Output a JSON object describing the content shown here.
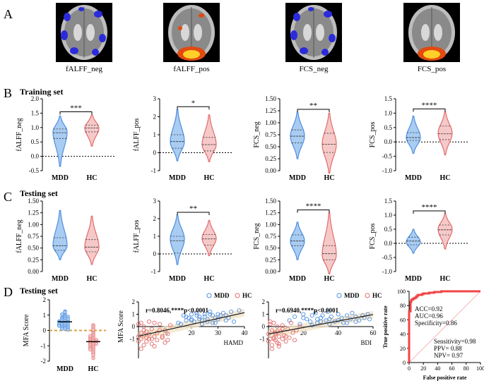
{
  "panel_letters": {
    "A": "A",
    "B": "B",
    "C": "C",
    "D": "D"
  },
  "rows": {
    "training": "Training set",
    "testing_c": "Testing set",
    "testing_d": "Testing set"
  },
  "groups": [
    "MDD",
    "HC"
  ],
  "colors": {
    "mdd_fill": "#a9ccf2",
    "mdd_line": "#4f8fe0",
    "hc_fill": "#f6c9c9",
    "hc_line": "#e36a6a",
    "roc": "#f04545",
    "fit": "#222222",
    "ci": "#f3e3c8",
    "dash": "#d9a241"
  },
  "brains": [
    {
      "label": "fALFF_neg",
      "type": "neg"
    },
    {
      "label": "fALFF_pos",
      "type": "pos"
    },
    {
      "label": "FCS_neg",
      "type": "neg"
    },
    {
      "label": "FCS_pos",
      "type": "pos"
    }
  ],
  "chart_data": [
    {
      "type": "violin",
      "panel": "B",
      "ylabel": "fALFF_neg",
      "ylim": [
        -0.5,
        2.0
      ],
      "yticks": [
        -0.5,
        0.0,
        0.5,
        1.0,
        1.5,
        2.0
      ],
      "tick_labels": [
        "-0.5",
        "0.0",
        "0.5",
        "1.0",
        "1.5",
        "2.0"
      ],
      "significance": "***",
      "series": [
        {
          "name": "MDD",
          "min": -0.35,
          "q1": 0.62,
          "median": 0.82,
          "q3": 0.95,
          "max": 1.4,
          "mode": 0.85
        },
        {
          "name": "HC",
          "min": 0.35,
          "q1": 0.85,
          "median": 0.98,
          "q3": 1.08,
          "max": 1.45,
          "mode": 0.98
        }
      ]
    },
    {
      "type": "violin",
      "panel": "B",
      "ylabel": "fALFF_pos",
      "ylim": [
        -1,
        3
      ],
      "yticks": [
        -1,
        0,
        1,
        2,
        3
      ],
      "tick_labels": [
        "-1",
        "0",
        "1",
        "2",
        "3"
      ],
      "significance": "*",
      "series": [
        {
          "name": "MDD",
          "min": -0.45,
          "q1": 0.25,
          "median": 0.62,
          "q3": 1.0,
          "max": 2.4,
          "mode": 0.6
        },
        {
          "name": "HC",
          "min": -0.5,
          "q1": 0.1,
          "median": 0.45,
          "q3": 0.85,
          "max": 2.1,
          "mode": 0.45
        }
      ]
    },
    {
      "type": "violin",
      "panel": "B",
      "ylabel": "FCS_neg",
      "ylim": [
        0.0,
        1.5
      ],
      "yticks": [
        0.0,
        0.25,
        0.5,
        0.75,
        1.0,
        1.25,
        1.5
      ],
      "tick_labels": [
        "0.00",
        "0.25",
        "0.50",
        "0.75",
        "1.00",
        "1.25",
        "1.50"
      ],
      "significance": "**",
      "series": [
        {
          "name": "MDD",
          "min": 0.25,
          "q1": 0.58,
          "median": 0.72,
          "q3": 0.85,
          "max": 1.22,
          "mode": 0.72
        },
        {
          "name": "HC",
          "min": -0.05,
          "q1": 0.38,
          "median": 0.55,
          "q3": 0.78,
          "max": 1.2,
          "mode": 0.55
        }
      ]
    },
    {
      "type": "violin",
      "panel": "B",
      "ylabel": "FCS_pos",
      "ylim": [
        -1.0,
        1.5
      ],
      "yticks": [
        -1.0,
        -0.5,
        0.0,
        0.5,
        1.0,
        1.5
      ],
      "tick_labels": [
        "-1.0",
        "-0.5",
        "0.0",
        "0.5",
        "1.0",
        "1.5"
      ],
      "significance": "****",
      "series": [
        {
          "name": "MDD",
          "min": -0.4,
          "q1": 0.05,
          "median": 0.15,
          "q3": 0.32,
          "max": 0.9,
          "mode": 0.15
        },
        {
          "name": "HC",
          "min": -0.45,
          "q1": 0.08,
          "median": 0.28,
          "q3": 0.55,
          "max": 1.05,
          "mode": 0.3
        }
      ]
    },
    {
      "type": "violin",
      "panel": "C",
      "ylabel": "fALFF_neg",
      "ylim": [
        0.0,
        1.5
      ],
      "yticks": [
        0.0,
        0.25,
        0.5,
        0.75,
        1.0,
        1.25,
        1.5
      ],
      "tick_labels": [
        "0.00",
        "0.25",
        "0.50",
        "0.75",
        "1.00",
        "1.25",
        "1.50"
      ],
      "significance": "",
      "series": [
        {
          "name": "MDD",
          "min": 0.25,
          "q1": 0.45,
          "median": 0.55,
          "q3": 0.72,
          "max": 1.3,
          "mode": 0.55
        },
        {
          "name": "HC",
          "min": 0.15,
          "q1": 0.42,
          "median": 0.52,
          "q3": 0.68,
          "max": 1.18,
          "mode": 0.52
        }
      ]
    },
    {
      "type": "violin",
      "panel": "C",
      "ylabel": "fALFF_pos",
      "ylim": [
        -1,
        3
      ],
      "yticks": [
        -1,
        0,
        1,
        2,
        3
      ],
      "tick_labels": [
        "-1",
        "0",
        "1",
        "2",
        "3"
      ],
      "significance": "**",
      "series": [
        {
          "name": "MDD",
          "min": -0.6,
          "q1": 0.05,
          "median": 0.75,
          "q3": 1.0,
          "max": 2.2,
          "mode": 0.85
        },
        {
          "name": "HC",
          "min": -0.1,
          "q1": 0.5,
          "median": 0.85,
          "q3": 1.1,
          "max": 1.9,
          "mode": 0.88
        }
      ]
    },
    {
      "type": "violin",
      "panel": "C",
      "ylabel": "FCS_neg",
      "ylim": [
        0.0,
        1.5
      ],
      "yticks": [
        0.0,
        0.25,
        0.5,
        0.75,
        1.0,
        1.25,
        1.5
      ],
      "tick_labels": [
        "0.00",
        "0.25",
        "0.50",
        "0.75",
        "1.00",
        "1.25",
        "1.50"
      ],
      "significance": "****",
      "series": [
        {
          "name": "MDD",
          "min": 0.25,
          "q1": 0.55,
          "median": 0.65,
          "q3": 0.78,
          "max": 1.05,
          "mode": 0.65
        },
        {
          "name": "HC",
          "min": -0.05,
          "q1": 0.25,
          "median": 0.38,
          "q3": 0.55,
          "max": 1.25,
          "mode": 0.35
        }
      ]
    },
    {
      "type": "violin",
      "panel": "C",
      "ylabel": "FCS_pos",
      "ylim": [
        -1.0,
        1.5
      ],
      "yticks": [
        -1.0,
        -0.5,
        0.0,
        0.5,
        1.0,
        1.5
      ],
      "tick_labels": [
        "-1.0",
        "-0.5",
        "0.0",
        "0.5",
        "1.0",
        "1.5"
      ],
      "significance": "****",
      "series": [
        {
          "name": "MDD",
          "min": -0.35,
          "q1": -0.05,
          "median": 0.08,
          "q3": 0.22,
          "max": 0.5,
          "mode": 0.05
        },
        {
          "name": "HC",
          "min": -0.2,
          "q1": 0.3,
          "median": 0.48,
          "q3": 0.65,
          "max": 1.05,
          "mode": 0.5
        }
      ]
    },
    {
      "type": "scatter",
      "panel": "D",
      "name": "mfa-dot",
      "ylabel": "MFA Score",
      "ylim": [
        -2,
        2
      ],
      "yticks": [
        -2,
        -1,
        0,
        1,
        2
      ],
      "tick_labels": [
        "-2",
        "-1",
        "0",
        "1",
        "2"
      ],
      "categories": [
        "MDD",
        "HC"
      ],
      "threshold": 0.0,
      "series": [
        {
          "name": "MDD",
          "values": [
            1.25,
            1.1,
            1.05,
            0.95,
            0.9,
            0.85,
            0.8,
            0.78,
            0.72,
            0.7,
            0.65,
            0.6,
            0.58,
            0.55,
            0.5,
            0.48,
            0.45,
            0.42,
            0.4,
            0.38,
            0.35,
            0.3,
            0.28,
            0.25,
            0.2,
            0.18,
            0.15,
            0.12,
            0.1,
            0.05,
            0.3,
            0.6,
            0.9,
            1.2,
            0.75,
            0.52
          ]
        },
        {
          "name": "HC",
          "values": [
            0.35,
            0.25,
            0.15,
            -0.1,
            -0.2,
            -0.3,
            -0.4,
            -0.45,
            -0.5,
            -0.55,
            -0.6,
            -0.65,
            -0.7,
            -0.75,
            -0.8,
            -0.85,
            -0.9,
            -0.95,
            -1.0,
            -1.05,
            -1.1,
            -1.15,
            -1.2,
            -1.3,
            -1.4,
            -1.5,
            -1.6,
            -1.8,
            -0.35,
            -0.62,
            -0.72,
            -0.88,
            -1.25,
            0.05
          ]
        }
      ]
    },
    {
      "type": "scatter",
      "panel": "D",
      "name": "hamd",
      "xlabel": "HAMD",
      "ylabel": "MFA Score",
      "xlim": [
        0,
        40
      ],
      "ylim": [
        -2,
        2
      ],
      "xticks": [
        10,
        20,
        30,
        40
      ],
      "yticks": [
        -1,
        0,
        1,
        2
      ],
      "x_tick_labels": [
        "10",
        "20",
        "30",
        "40"
      ],
      "tick_labels": [
        "-1",
        "0",
        "1",
        "2"
      ],
      "stat": "r=0.8046,****p<0.0001",
      "fit": {
        "slope": 0.0477,
        "intercept": -0.78
      },
      "series": [
        {
          "name": "MDD",
          "x": [
            15,
            16,
            17,
            18,
            18,
            19,
            20,
            20,
            21,
            22,
            22,
            23,
            24,
            24,
            25,
            26,
            26,
            27,
            28,
            28,
            29,
            30,
            30,
            31,
            32,
            33,
            34,
            35,
            36,
            38,
            20,
            25,
            29,
            33,
            23,
            27
          ],
          "y": [
            0.3,
            0.2,
            0.9,
            0.5,
            0.8,
            0.7,
            1.0,
            0.6,
            0.4,
            0.9,
            1.1,
            0.8,
            0.2,
            0.5,
            1.0,
            0.4,
            0.6,
            1.2,
            0.9,
            0.3,
            0.7,
            1.0,
            0.6,
            0.9,
            1.1,
            0.5,
            0.7,
            1.2,
            0.4,
            1.3,
            0.5,
            0.8,
            0.3,
            0.9,
            0.6,
            1.0
          ]
        },
        {
          "name": "HC",
          "x": [
            0,
            0,
            1,
            1,
            1,
            2,
            2,
            2,
            3,
            3,
            4,
            4,
            5,
            5,
            6,
            6,
            7,
            7,
            8,
            9,
            10,
            10,
            11,
            12,
            1,
            3,
            5,
            0,
            2,
            4,
            6,
            8,
            9,
            11
          ],
          "y": [
            -1.2,
            -0.8,
            -1.0,
            -0.5,
            0.3,
            -1.5,
            -0.3,
            0.0,
            -0.9,
            -1.2,
            -0.6,
            0.4,
            -1.0,
            -0.2,
            -0.8,
            0.3,
            -1.1,
            -0.5,
            0.2,
            -0.9,
            -0.3,
            -1.3,
            -0.6,
            0.1,
            -1.8,
            -0.4,
            -1.4,
            0.2,
            -0.7,
            -1.0,
            -1.6,
            -0.3,
            -0.8,
            -1.1
          ]
        }
      ]
    },
    {
      "type": "scatter",
      "panel": "D",
      "name": "bdi",
      "xlabel": "BDI",
      "ylabel": "",
      "xlim": [
        0,
        60
      ],
      "ylim": [
        -2,
        2
      ],
      "xticks": [
        20,
        40,
        60
      ],
      "yticks": [
        -1,
        0,
        1,
        2
      ],
      "x_tick_labels": [
        "20",
        "40",
        "60"
      ],
      "tick_labels": [
        "-1",
        "0",
        "1",
        "2"
      ],
      "stat": "r=0.6940,****p<0.0001",
      "fit": {
        "slope": 0.0262,
        "intercept": -0.6
      },
      "series": [
        {
          "name": "MDD",
          "x": [
            12,
            15,
            18,
            20,
            22,
            24,
            25,
            27,
            28,
            30,
            31,
            33,
            34,
            35,
            36,
            38,
            40,
            42,
            43,
            45,
            47,
            48,
            50,
            52,
            54,
            55,
            57,
            58,
            25,
            30,
            35,
            40,
            45,
            20,
            28,
            50
          ],
          "y": [
            0.5,
            0.8,
            0.2,
            1.0,
            0.6,
            0.4,
            0.9,
            1.1,
            0.3,
            0.7,
            0.9,
            0.5,
            1.2,
            0.6,
            0.8,
            0.4,
            1.0,
            0.7,
            0.3,
            0.9,
            0.6,
            1.1,
            0.8,
            0.5,
            0.9,
            0.7,
            1.0,
            0.6,
            0.1,
            0.4,
            0.2,
            0.5,
            0.3,
            0.7,
            0.6,
            0.4
          ]
        },
        {
          "name": "HC",
          "x": [
            0,
            0,
            1,
            1,
            2,
            2,
            3,
            3,
            4,
            4,
            5,
            5,
            6,
            6,
            7,
            8,
            8,
            9,
            10,
            11,
            12,
            13,
            14,
            15,
            16,
            18,
            2,
            4,
            6,
            8,
            10,
            1,
            3,
            5
          ],
          "y": [
            -1.2,
            -0.6,
            -1.0,
            0.2,
            -1.5,
            -0.3,
            -0.9,
            0.3,
            -1.1,
            -0.5,
            -1.3,
            0.0,
            -0.8,
            -1.6,
            -0.4,
            -1.0,
            0.1,
            -0.7,
            -1.2,
            -0.2,
            -0.9,
            0.3,
            -0.5,
            -1.1,
            -0.3,
            0.0,
            -1.8,
            -0.6,
            -1.4,
            -0.2,
            -0.8,
            0.4,
            -1.0,
            -0.4
          ]
        }
      ]
    },
    {
      "type": "line",
      "panel": "D",
      "name": "roc",
      "xlabel": "False positive rate",
      "ylabel": "True positive rate",
      "xlim": [
        0,
        100
      ],
      "ylim": [
        0,
        100
      ],
      "xticks": [
        0,
        20,
        40,
        60,
        80,
        100
      ],
      "yticks": [
        0,
        20,
        40,
        60,
        80,
        100
      ],
      "x": [
        0,
        0,
        2,
        2,
        3,
        3,
        5,
        5,
        6,
        6,
        8,
        8,
        10,
        10,
        12,
        12,
        18,
        18,
        20,
        20,
        28,
        28,
        35,
        35,
        45,
        45,
        100
      ],
      "y": [
        0,
        72,
        72,
        85,
        85,
        88,
        88,
        89,
        89,
        90,
        90,
        91,
        91,
        93,
        93,
        95,
        95,
        96,
        96,
        97,
        97,
        98,
        98,
        99,
        99,
        100,
        100
      ],
      "stats": {
        "acc": "ACC=0.92",
        "auc": "AUC=0.96",
        "spec": "Specificity=0.86",
        "sens": "Sensitivity=0.98",
        "ppv": "PPV= 0.88",
        "npv": "NPV= 0.97"
      }
    }
  ]
}
